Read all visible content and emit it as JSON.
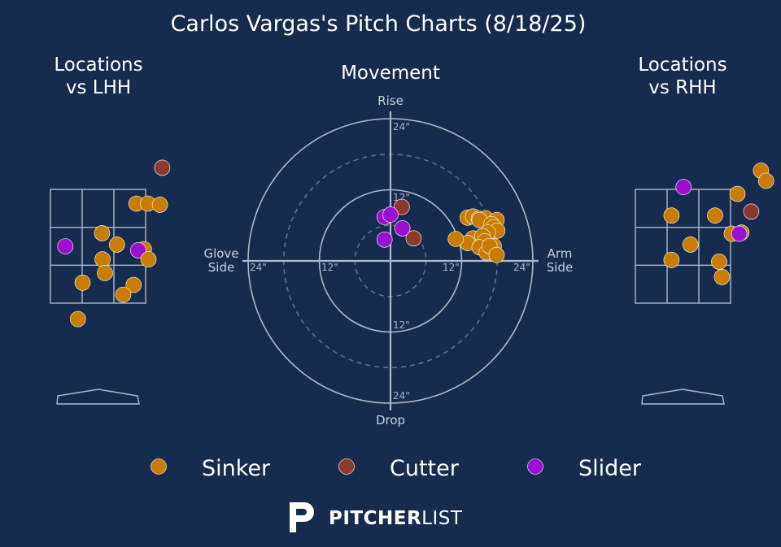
{
  "title": "Carlos Vargas's Pitch Charts (8/18/25)",
  "colors": {
    "background": "#162c4f",
    "Sinker": "#c97c02",
    "Cutter": "#8c3a2e",
    "Slider": "#9b0fd0"
  },
  "logo": {
    "bold": "PITCHER",
    "light": "LIST",
    "icon": "pitcherlist-p-icon"
  },
  "chart_data": [
    {
      "type": "scatter",
      "panel": "locations-lhh",
      "title_lines": [
        "Locations",
        "vs LHH"
      ],
      "units": "feet (catcher view)",
      "xlim": [
        -1.5,
        1.5
      ],
      "ylim": [
        0.5,
        4.5
      ],
      "strike_zone": {
        "x": [
          -0.83,
          0.83
        ],
        "z": [
          1.5,
          3.5
        ]
      },
      "points": [
        {
          "type": "Cutter",
          "x": 1.12,
          "z": 3.88
        },
        {
          "type": "Sinker",
          "x": 0.67,
          "z": 3.25
        },
        {
          "type": "Sinker",
          "x": 0.87,
          "z": 3.25
        },
        {
          "type": "Sinker",
          "x": 1.08,
          "z": 3.23
        },
        {
          "type": "Sinker",
          "x": 0.07,
          "z": 2.73
        },
        {
          "type": "Sinker",
          "x": 0.33,
          "z": 2.53
        },
        {
          "type": "Slider",
          "x": -0.57,
          "z": 2.5
        },
        {
          "type": "Sinker",
          "x": 0.8,
          "z": 2.45
        },
        {
          "type": "Slider",
          "x": 0.7,
          "z": 2.43
        },
        {
          "type": "Sinker",
          "x": 0.88,
          "z": 2.27
        },
        {
          "type": "Sinker",
          "x": 0.08,
          "z": 2.27
        },
        {
          "type": "Sinker",
          "x": 0.12,
          "z": 2.03
        },
        {
          "type": "Sinker",
          "x": -0.27,
          "z": 1.86
        },
        {
          "type": "Sinker",
          "x": 0.62,
          "z": 1.82
        },
        {
          "type": "Sinker",
          "x": 0.44,
          "z": 1.65
        },
        {
          "type": "Sinker",
          "x": -0.35,
          "z": 1.22
        }
      ]
    },
    {
      "type": "scatter",
      "panel": "movement",
      "title": "Movement",
      "units": "inches",
      "axis_labels": {
        "top": "Rise",
        "bottom": "Drop",
        "left": [
          "Glove",
          "Side"
        ],
        "right": [
          "Arm",
          "Side"
        ]
      },
      "rings": [
        {
          "radius": 6,
          "style": "dashed"
        },
        {
          "radius": 12,
          "style": "solid"
        },
        {
          "radius": 18,
          "style": "dashed"
        },
        {
          "radius": 24,
          "style": "solid"
        }
      ],
      "ring_labels": [
        "12\"",
        "24\""
      ],
      "range": 24,
      "points": [
        {
          "type": "Sinker",
          "hb": 13.9,
          "ivb": 3.8
        },
        {
          "type": "Sinker",
          "hb": 13.0,
          "ivb": 7.3
        },
        {
          "type": "Sinker",
          "hb": 13.9,
          "ivb": 7.5
        },
        {
          "type": "Sinker",
          "hb": 14.9,
          "ivb": 7.1
        },
        {
          "type": "Sinker",
          "hb": 16.0,
          "ivb": 7.2
        },
        {
          "type": "Sinker",
          "hb": 17.9,
          "ivb": 6.9
        },
        {
          "type": "Sinker",
          "hb": 15.0,
          "ivb": 6.9
        },
        {
          "type": "Sinker",
          "hb": 17.0,
          "ivb": 6.2
        },
        {
          "type": "Sinker",
          "hb": 17.4,
          "ivb": 5.7
        },
        {
          "type": "Sinker",
          "hb": 18.0,
          "ivb": 5.1
        },
        {
          "type": "Sinker",
          "hb": 16.4,
          "ivb": 4.8
        },
        {
          "type": "Sinker",
          "hb": 15.5,
          "ivb": 4.2
        },
        {
          "type": "Sinker",
          "hb": 15.9,
          "ivb": 3.3
        },
        {
          "type": "Sinker",
          "hb": 13.0,
          "ivb": 3.0
        },
        {
          "type": "Sinker",
          "hb": 15.0,
          "ivb": 2.3
        },
        {
          "type": "Sinker",
          "hb": 17.4,
          "ivb": 2.5
        },
        {
          "type": "Sinker",
          "hb": 16.2,
          "ivb": 1.4
        },
        {
          "type": "Sinker",
          "hb": 16.7,
          "ivb": 2.5
        },
        {
          "type": "Sinker",
          "hb": 17.9,
          "ivb": 1.0
        },
        {
          "type": "Sinker",
          "hb": 11.0,
          "ivb": 3.7
        },
        {
          "type": "Cutter",
          "hb": 1.9,
          "ivb": 9.1
        },
        {
          "type": "Cutter",
          "hb": 3.9,
          "ivb": 3.8
        },
        {
          "type": "Slider",
          "hb": -1.0,
          "ivb": 7.4
        },
        {
          "type": "Slider",
          "hb": 0.0,
          "ivb": 7.8
        },
        {
          "type": "Slider",
          "hb": 2.0,
          "ivb": 5.5
        },
        {
          "type": "Slider",
          "hb": -1.0,
          "ivb": 3.6
        }
      ]
    },
    {
      "type": "scatter",
      "panel": "locations-rhh",
      "title_lines": [
        "Locations",
        "vs RHH"
      ],
      "units": "feet (catcher view)",
      "xlim": [
        -1.5,
        1.5
      ],
      "ylim": [
        0.5,
        4.5
      ],
      "strike_zone": {
        "x": [
          -0.83,
          0.83
        ],
        "z": [
          1.5,
          3.5
        ]
      },
      "points": [
        {
          "type": "Sinker",
          "x": 1.36,
          "z": 3.83
        },
        {
          "type": "Sinker",
          "x": 1.45,
          "z": 3.65
        },
        {
          "type": "Slider",
          "x": 0.01,
          "z": 3.54
        },
        {
          "type": "Sinker",
          "x": 0.95,
          "z": 3.42
        },
        {
          "type": "Cutter",
          "x": 1.19,
          "z": 3.11
        },
        {
          "type": "Sinker",
          "x": -0.2,
          "z": 3.04
        },
        {
          "type": "Sinker",
          "x": 0.56,
          "z": 3.04
        },
        {
          "type": "Sinker",
          "x": 0.85,
          "z": 2.72
        },
        {
          "type": "Sinker",
          "x": 1.02,
          "z": 2.74
        },
        {
          "type": "Slider",
          "x": 0.98,
          "z": 2.72
        },
        {
          "type": "Sinker",
          "x": 0.13,
          "z": 2.53
        },
        {
          "type": "Sinker",
          "x": -0.2,
          "z": 2.26
        },
        {
          "type": "Sinker",
          "x": 0.63,
          "z": 2.23
        },
        {
          "type": "Sinker",
          "x": 0.68,
          "z": 1.96
        }
      ]
    }
  ],
  "legend": [
    {
      "label": "Sinker",
      "color": "#c97c02"
    },
    {
      "label": "Cutter",
      "color": "#8c3a2e"
    },
    {
      "label": "Slider",
      "color": "#9b0fd0"
    }
  ]
}
